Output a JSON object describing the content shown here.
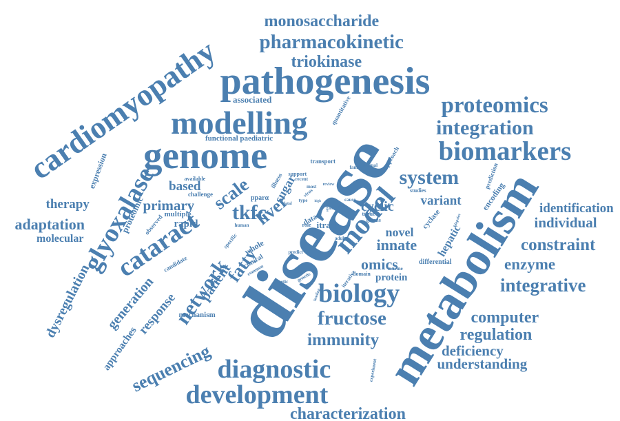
{
  "cloud": {
    "color": "#4b7fb0",
    "background": "#ffffff",
    "words": [
      {
        "text": "disease",
        "name": "word-disease"
      },
      {
        "text": "metabolism",
        "name": "word-metabolism"
      },
      {
        "text": "pathogenesis",
        "name": "word-pathogenesis"
      },
      {
        "text": "genome",
        "name": "word-genome"
      },
      {
        "text": "cardiomyopathy",
        "name": "word-cardiomyopathy"
      },
      {
        "text": "modelling",
        "name": "word-modelling"
      },
      {
        "text": "model",
        "name": "word-model"
      },
      {
        "text": "biomarkers",
        "name": "word-biomarkers"
      },
      {
        "text": "biology",
        "name": "word-biology"
      },
      {
        "text": "development",
        "name": "word-development"
      },
      {
        "text": "diagnostic",
        "name": "word-diagnostic"
      },
      {
        "text": "glyoxalase",
        "name": "word-glyoxalase"
      },
      {
        "text": "cataract",
        "name": "word-cataract"
      },
      {
        "text": "network",
        "name": "word-network"
      },
      {
        "text": "proteomics",
        "name": "word-proteomics"
      },
      {
        "text": "integration",
        "name": "word-integration"
      },
      {
        "text": "pharmacokinetic",
        "name": "word-pharmacokinetic"
      },
      {
        "text": "system",
        "name": "word-system"
      },
      {
        "text": "fructose",
        "name": "word-fructose"
      },
      {
        "text": "integrative",
        "name": "word-integrative"
      },
      {
        "text": "immunity",
        "name": "word-immunity"
      },
      {
        "text": "sequencing",
        "name": "word-sequencing"
      },
      {
        "text": "monosaccharide",
        "name": "word-monosaccharide"
      },
      {
        "text": "triokinase",
        "name": "word-triokinase"
      },
      {
        "text": "constraint",
        "name": "word-constraint"
      },
      {
        "text": "computer",
        "name": "word-computer"
      },
      {
        "text": "characterization",
        "name": "word-characterization"
      },
      {
        "text": "regulation",
        "name": "word-regulation"
      },
      {
        "text": "enzyme",
        "name": "word-enzyme"
      },
      {
        "text": "understanding",
        "name": "word-understanding"
      },
      {
        "text": "deficiency",
        "name": "word-deficiency"
      },
      {
        "text": "adaptation",
        "name": "word-adaptation"
      },
      {
        "text": "identification",
        "name": "word-identification"
      },
      {
        "text": "individual",
        "name": "word-individual"
      },
      {
        "text": "scale",
        "name": "word-scale"
      },
      {
        "text": "tkfc",
        "name": "word-tkfc"
      },
      {
        "text": "liver",
        "name": "word-liver"
      },
      {
        "text": "fatty",
        "name": "word-fatty"
      },
      {
        "text": "patient",
        "name": "word-patient"
      },
      {
        "text": "primary",
        "name": "word-primary"
      },
      {
        "text": "therapy",
        "name": "word-therapy"
      },
      {
        "text": "based",
        "name": "word-based"
      },
      {
        "text": "generation",
        "name": "word-generation"
      },
      {
        "text": "response",
        "name": "word-response"
      },
      {
        "text": "dysregulation",
        "name": "word-dysregulation"
      },
      {
        "text": "molecular",
        "name": "word-molecular"
      },
      {
        "text": "omics",
        "name": "word-omics"
      },
      {
        "text": "innate",
        "name": "word-innate"
      },
      {
        "text": "cyclic",
        "name": "word-cyclic"
      },
      {
        "text": "variant",
        "name": "word-variant"
      },
      {
        "text": "novel",
        "name": "word-novel"
      },
      {
        "text": "protein",
        "name": "word-protein"
      },
      {
        "text": "hepatic",
        "name": "word-hepatic"
      },
      {
        "text": "approaches",
        "name": "word-approaches"
      },
      {
        "text": "expression",
        "name": "word-expression"
      },
      {
        "text": "proteomic",
        "name": "word-proteomic"
      },
      {
        "text": "associated",
        "name": "word-associated"
      },
      {
        "text": "rapid",
        "name": "word-rapid"
      },
      {
        "text": "sugar",
        "name": "word-sugar"
      },
      {
        "text": "itraq",
        "name": "word-itraq"
      },
      {
        "text": "mechanism",
        "name": "word-mechanism"
      },
      {
        "text": "functional paediatric",
        "name": "word-functional-paediatric"
      },
      {
        "text": "quantitative",
        "name": "word-quantitative"
      },
      {
        "text": "multiple",
        "name": "word-multiple"
      },
      {
        "text": "data",
        "name": "word-data"
      },
      {
        "text": "whole",
        "name": "word-whole"
      },
      {
        "text": "clinical",
        "name": "word-clinical"
      },
      {
        "text": "differential",
        "name": "word-differential"
      },
      {
        "text": "encoding",
        "name": "word-encoding"
      },
      {
        "text": "cyclase",
        "name": "word-cyclase"
      },
      {
        "text": "prediction",
        "name": "word-prediction"
      },
      {
        "text": "approach",
        "name": "word-approach"
      },
      {
        "text": "candidate",
        "name": "word-candidate"
      },
      {
        "text": "challenge",
        "name": "word-challenge"
      },
      {
        "text": "available",
        "name": "word-available"
      },
      {
        "text": "observed",
        "name": "word-observed"
      },
      {
        "text": "transport",
        "name": "word-transport"
      },
      {
        "text": "support",
        "name": "word-support"
      },
      {
        "text": "illness",
        "name": "word-illness"
      },
      {
        "text": "pparα",
        "name": "word-ppara"
      },
      {
        "text": "studies",
        "name": "word-studies"
      },
      {
        "text": "tissue",
        "name": "word-tissue"
      },
      {
        "text": "gsmns",
        "name": "word-gsmns"
      },
      {
        "text": "murine",
        "name": "word-murine"
      },
      {
        "text": "role",
        "name": "word-role"
      },
      {
        "text": "specific",
        "name": "word-specific"
      },
      {
        "text": "human",
        "name": "word-human"
      },
      {
        "text": "common",
        "name": "word-common"
      },
      {
        "text": "kinetic",
        "name": "word-kinetic"
      },
      {
        "text": "genetic",
        "name": "word-genetic"
      },
      {
        "text": "loading",
        "name": "word-loading"
      },
      {
        "text": "iterative",
        "name": "word-iterative"
      },
      {
        "text": "domain",
        "name": "word-domain"
      },
      {
        "text": "experiment",
        "name": "word-experiment"
      },
      {
        "text": "biopsies",
        "name": "word-biopsies"
      },
      {
        "text": "animal",
        "name": "word-animal"
      },
      {
        "text": "family",
        "name": "word-family"
      },
      {
        "text": "cause",
        "name": "word-cause"
      },
      {
        "text": "adult",
        "name": "word-adult"
      },
      {
        "text": "predict",
        "name": "word-predict"
      },
      {
        "text": "virus",
        "name": "word-virus"
      },
      {
        "text": "most",
        "name": "word-most"
      },
      {
        "text": "recent",
        "name": "word-recent"
      },
      {
        "text": "review",
        "name": "word-review"
      },
      {
        "text": "fatal",
        "name": "word-fatal"
      },
      {
        "text": "type",
        "name": "word-type"
      },
      {
        "text": "high",
        "name": "word-high"
      },
      {
        "text": "stress",
        "name": "word-stress"
      },
      {
        "text": "life",
        "name": "word-life"
      },
      {
        "text": "gene",
        "name": "word-gene"
      }
    ]
  }
}
